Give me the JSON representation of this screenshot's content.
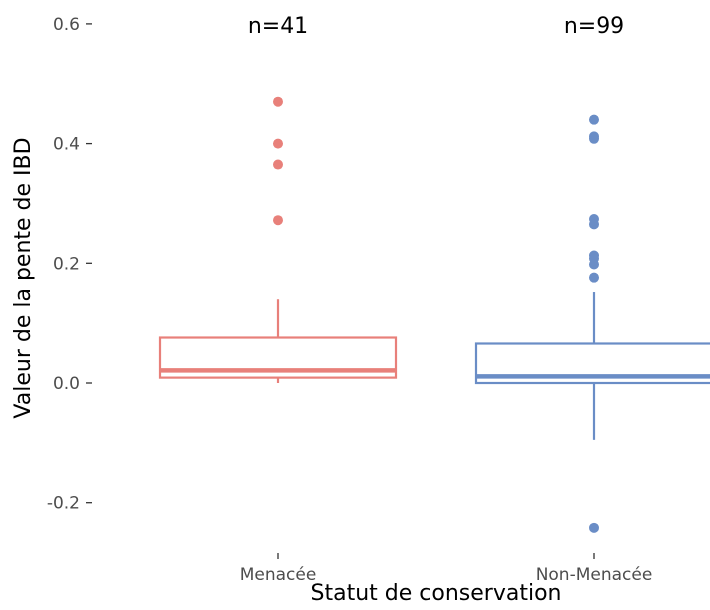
{
  "chart_data": {
    "type": "box",
    "xlabel": "Statut de conservation",
    "ylabel": "Valeur de la pente de IBD",
    "ylim": [
      -0.27,
      0.6
    ],
    "yticks": [
      0.6,
      0.4,
      0.2,
      0.0,
      -0.2
    ],
    "ytick_labels": [
      "0.6",
      "0.4",
      "0.2",
      "0.0",
      "-0.2"
    ],
    "grid": false,
    "categories": [
      "Menacée",
      "Non-Menacée"
    ],
    "groups": [
      {
        "category": "Menacée",
        "n_label": "n=41",
        "color": "#E8807A",
        "q1": 0.009,
        "median": 0.021,
        "q3": 0.076,
        "whisker_low": 0.0,
        "whisker_high": 0.14,
        "outliers": [
          0.47,
          0.4,
          0.365,
          0.272
        ]
      },
      {
        "category": "Non-Menacée",
        "n_label": "n=99",
        "color": "#6A8DC6",
        "q1": 0.0,
        "median": 0.011,
        "q3": 0.066,
        "whisker_low": -0.095,
        "whisker_high": 0.152,
        "outliers": [
          0.44,
          0.412,
          0.408,
          0.274,
          0.265,
          0.213,
          0.208,
          0.198,
          0.176,
          -0.242
        ]
      }
    ]
  }
}
